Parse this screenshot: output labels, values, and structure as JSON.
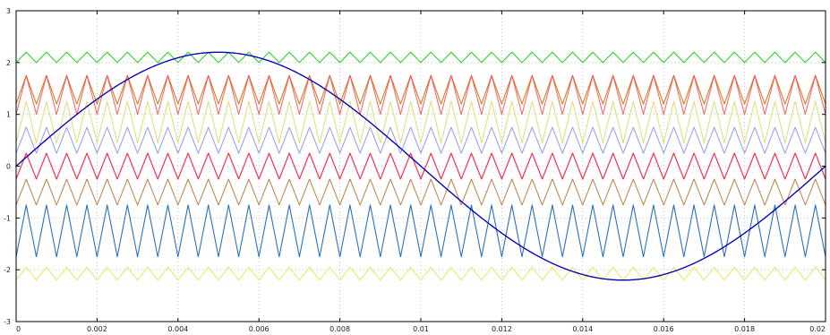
{
  "chart_data": {
    "type": "line",
    "title": "",
    "xlabel": "",
    "ylabel": "",
    "xlim": [
      0,
      0.02
    ],
    "ylim": [
      -3,
      3
    ],
    "grid": true,
    "x_ticks": [
      0,
      0.002,
      0.004,
      0.006,
      0.008,
      0.01,
      0.012,
      0.014,
      0.016,
      0.018,
      0.02
    ],
    "x_tick_labels": [
      "0",
      "0.002",
      "0.004",
      "0.006",
      "0.008",
      "0.01",
      "0.012",
      "0.014",
      "0.016",
      "0.018",
      "0.02"
    ],
    "y_ticks": [
      -3,
      -2,
      -1,
      0,
      1,
      2,
      3
    ],
    "y_tick_labels": [
      "-3",
      "-2",
      "-1",
      "0",
      "1",
      "2",
      "3"
    ],
    "series": [
      {
        "kind": "triangle-carrier",
        "color": "#00cc00",
        "min": 2.0,
        "max": 2.2,
        "frequency_hz": 2000
      },
      {
        "kind": "triangle-carrier",
        "color": "#cc6600",
        "min": 1.2,
        "max": 1.75,
        "frequency_hz": 2000
      },
      {
        "kind": "triangle-carrier",
        "color": "#ff4a4a",
        "min": 1.0,
        "max": 1.75,
        "frequency_hz": 2000
      },
      {
        "kind": "triangle-carrier",
        "color": "#d9d96b",
        "min": 0.45,
        "max": 1.25,
        "frequency_hz": 2000
      },
      {
        "kind": "triangle-carrier",
        "color": "#8888ff",
        "min": 0.25,
        "max": 0.75,
        "frequency_hz": 2000
      },
      {
        "kind": "triangle-carrier",
        "color": "#ff33ff",
        "min": -0.25,
        "max": 0.25,
        "frequency_hz": 2000
      },
      {
        "kind": "triangle-carrier",
        "color": "#ff2020",
        "min": -0.25,
        "max": 0.25,
        "frequency_hz": 2000
      },
      {
        "kind": "triangle-carrier",
        "color": "#b07030",
        "min": -0.75,
        "max": -0.25,
        "frequency_hz": 2000
      },
      {
        "kind": "triangle-carrier",
        "color": "#33cc66",
        "min": -1.75,
        "max": -0.75,
        "frequency_hz": 2000
      },
      {
        "kind": "triangle-carrier",
        "color": "#2b5fd9",
        "min": -1.75,
        "max": -0.75,
        "frequency_hz": 2000
      },
      {
        "kind": "triangle-carrier",
        "color": "#e5e54a",
        "min": -2.2,
        "max": -1.95,
        "frequency_hz": 2000
      },
      {
        "kind": "sine-reference",
        "color": "#0000b8",
        "amplitude": 2.2,
        "frequency_hz": 50
      }
    ]
  }
}
